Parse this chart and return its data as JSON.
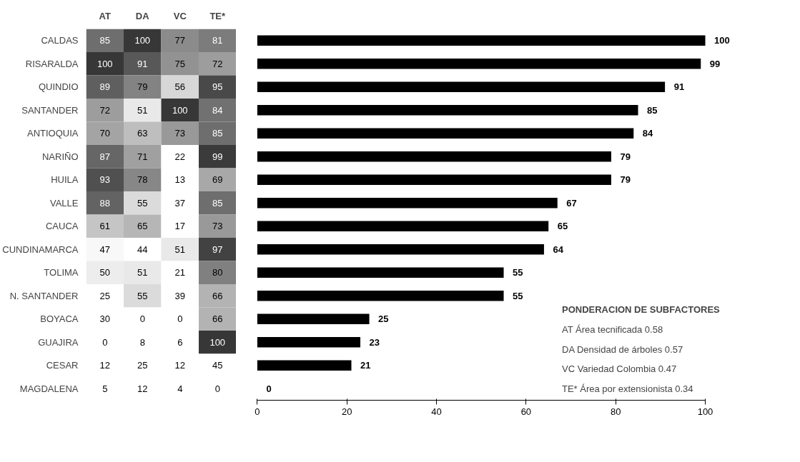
{
  "chart_data": [
    {
      "type": "heatmap",
      "categories": [
        "AT",
        "DA",
        "VC",
        "TE*"
      ],
      "y_categories": [
        "CALDAS",
        "RISARALDA",
        "QUINDIO",
        "SANTANDER",
        "ANTIOQUIA",
        "NARIÑO",
        "HUILA",
        "VALLE",
        "CAUCA",
        "CUNDINAMARCA",
        "TOLIMA",
        "N. SANTANDER",
        "BOYACA",
        "GUAJIRA",
        "CESAR",
        "MAGDALENA"
      ],
      "cells": [
        [
          85,
          100,
          77,
          81
        ],
        [
          100,
          91,
          75,
          72
        ],
        [
          89,
          79,
          56,
          95
        ],
        [
          72,
          51,
          100,
          84
        ],
        [
          70,
          63,
          73,
          85
        ],
        [
          87,
          71,
          22,
          99
        ],
        [
          93,
          78,
          13,
          69
        ],
        [
          88,
          55,
          37,
          85
        ],
        [
          61,
          65,
          17,
          73
        ],
        [
          47,
          44,
          51,
          97
        ],
        [
          50,
          51,
          21,
          80
        ],
        [
          25,
          55,
          39,
          66
        ],
        [
          30,
          0,
          0,
          66
        ],
        [
          0,
          8,
          6,
          100
        ],
        [
          12,
          25,
          12,
          45
        ],
        [
          5,
          12,
          4,
          0
        ]
      ],
      "cell_labels": [
        [
          "85",
          "100",
          "77",
          "81"
        ],
        [
          "100",
          "91",
          "75",
          "72"
        ],
        [
          "89",
          "79",
          "56",
          "95"
        ],
        [
          "72",
          "51",
          "100",
          "84"
        ],
        [
          "70",
          "63",
          "73",
          "85"
        ],
        [
          "87",
          "71",
          "22",
          "99"
        ],
        [
          "93",
          "78",
          "13",
          "69"
        ],
        [
          "88",
          "55",
          "37",
          "85"
        ],
        [
          "61",
          "65",
          "17",
          "73"
        ],
        [
          "47",
          "44",
          "51",
          "97"
        ],
        [
          "50",
          "51",
          "21",
          "80"
        ],
        [
          "25",
          "55",
          "39",
          "66"
        ],
        [
          "30",
          "0",
          "0",
          "66"
        ],
        [
          "0",
          "8",
          "6",
          "100"
        ],
        [
          "12",
          "25",
          "12",
          "45"
        ],
        [
          "5",
          "12",
          "4",
          "0"
        ]
      ]
    },
    {
      "type": "bar",
      "orientation": "horizontal",
      "categories": [
        null,
        null,
        null,
        null,
        null,
        null,
        null,
        null,
        null,
        null,
        null,
        null,
        null,
        null,
        null,
        null
      ],
      "values": [
        100,
        99,
        91,
        85,
        84,
        79,
        79,
        67,
        65,
        64,
        55,
        55,
        25,
        23,
        21,
        0
      ],
      "color": "#000000",
      "xlim": [
        0,
        100
      ],
      "xticks": [
        0,
        20,
        40,
        60,
        80,
        100
      ],
      "data_labels": true,
      "grid": false,
      "annotations": [
        "PONDERACION DE SUBFACTORES",
        "AT  Área tecnificada  0.58",
        "DA  Densidad de árboles  0.57",
        "VC  Variedad Colombia  0.47",
        "TE*  Área por extensionista  0.34"
      ]
    }
  ]
}
